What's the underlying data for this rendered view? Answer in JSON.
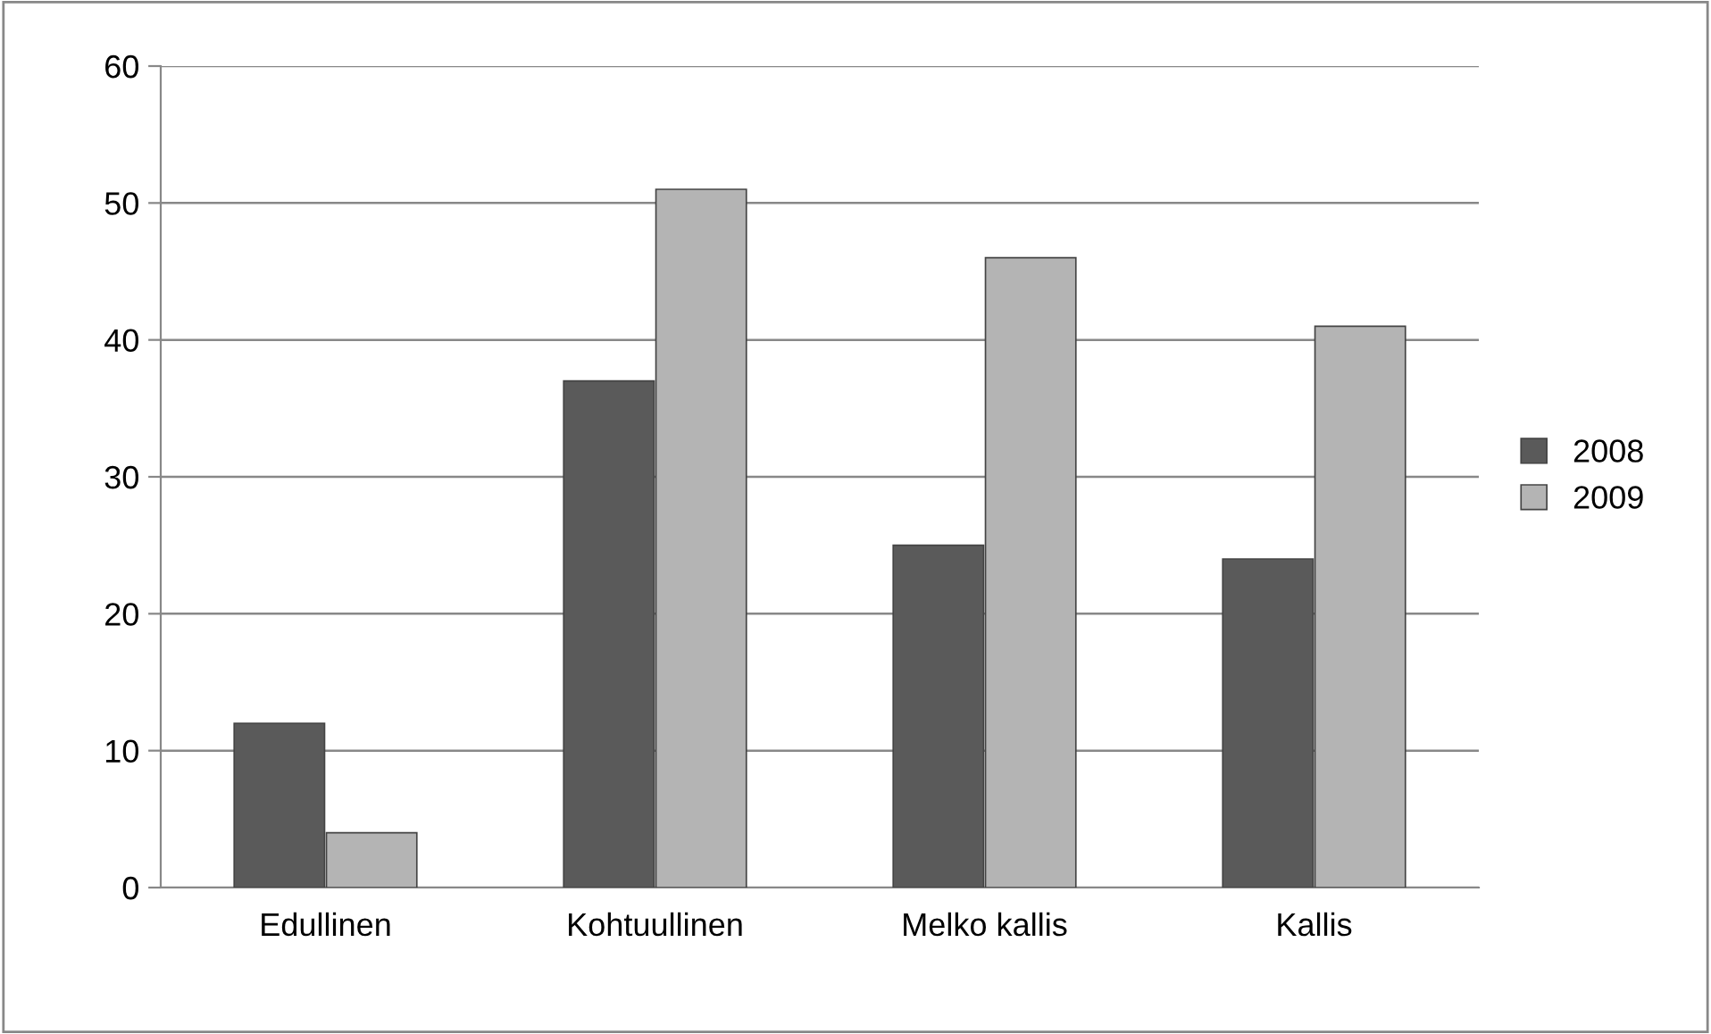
{
  "chart_data": {
    "type": "bar",
    "categories": [
      "Edullinen",
      "Kohtuullinen",
      "Melko kallis",
      "Kallis"
    ],
    "series": [
      {
        "name": "2008",
        "color": "#5a5a5a",
        "values": [
          12,
          37,
          25,
          24
        ]
      },
      {
        "name": "2009",
        "color": "#b4b4b4",
        "values": [
          4,
          51,
          46,
          41
        ]
      }
    ],
    "ylim": [
      0,
      60
    ],
    "yticks": [
      0,
      10,
      20,
      30,
      40,
      50,
      60
    ],
    "grid": "y",
    "legend": "right"
  }
}
